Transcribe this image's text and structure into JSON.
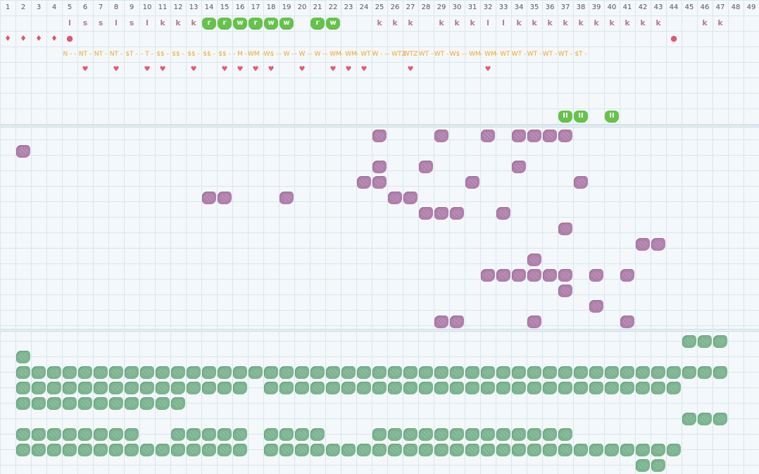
{
  "columns": [
    1,
    2,
    3,
    4,
    5,
    6,
    7,
    8,
    9,
    10,
    11,
    12,
    13,
    14,
    15,
    16,
    17,
    18,
    19,
    20,
    21,
    22,
    23,
    24,
    25,
    26,
    27,
    28,
    29,
    30,
    31,
    32,
    33,
    34,
    35,
    36,
    37,
    38,
    39,
    40,
    41,
    42,
    43,
    44,
    45,
    46,
    47,
    48,
    49
  ],
  "colors": {
    "purple": "#b07fab",
    "green": "#7bb48f",
    "badge": "#66c24a",
    "letter": "#b27d8e",
    "code": "#f0a62b",
    "heart": "#e65a73",
    "drop": "#e0576e"
  },
  "letters_row": [
    {
      "col": 5,
      "text": "l"
    },
    {
      "col": 6,
      "text": "s"
    },
    {
      "col": 7,
      "text": "s"
    },
    {
      "col": 8,
      "text": "l"
    },
    {
      "col": 9,
      "text": "s"
    },
    {
      "col": 10,
      "text": "l"
    },
    {
      "col": 11,
      "text": "k"
    },
    {
      "col": 12,
      "text": "k"
    },
    {
      "col": 13,
      "text": "k"
    },
    {
      "col": 25,
      "text": "k"
    },
    {
      "col": 26,
      "text": "k"
    },
    {
      "col": 27,
      "text": "k"
    },
    {
      "col": 29,
      "text": "k"
    },
    {
      "col": 30,
      "text": "k"
    },
    {
      "col": 31,
      "text": "k"
    },
    {
      "col": 32,
      "text": "l"
    },
    {
      "col": 33,
      "text": "l"
    },
    {
      "col": 34,
      "text": "k"
    },
    {
      "col": 35,
      "text": "k"
    },
    {
      "col": 36,
      "text": "k"
    },
    {
      "col": 37,
      "text": "k"
    },
    {
      "col": 38,
      "text": "k"
    },
    {
      "col": 39,
      "text": "k"
    },
    {
      "col": 40,
      "text": "k"
    },
    {
      "col": 41,
      "text": "k"
    },
    {
      "col": 42,
      "text": "k"
    },
    {
      "col": 43,
      "text": "k"
    },
    {
      "col": 46,
      "text": "k"
    },
    {
      "col": 47,
      "text": "k"
    }
  ],
  "badges_row": [
    {
      "col": 14,
      "text": "r"
    },
    {
      "col": 15,
      "text": "r"
    },
    {
      "col": 16,
      "text": "w"
    },
    {
      "col": 17,
      "text": "r"
    },
    {
      "col": 18,
      "text": "w"
    },
    {
      "col": 19,
      "text": "w"
    },
    {
      "col": 21,
      "text": "r"
    },
    {
      "col": 22,
      "text": "w"
    }
  ],
  "drops_row": [
    {
      "col": 1,
      "text": "♦"
    },
    {
      "col": 2,
      "text": "♦"
    },
    {
      "col": 3,
      "text": "♦"
    },
    {
      "col": 4,
      "text": "♦"
    },
    {
      "col": 5,
      "text": "●"
    },
    {
      "col": 44,
      "text": "●"
    }
  ],
  "codes_row": [
    {
      "col": 5,
      "text": "N - -"
    },
    {
      "col": 6,
      "text": "NT -"
    },
    {
      "col": 7,
      "text": "NT -"
    },
    {
      "col": 8,
      "text": "NT -"
    },
    {
      "col": 9,
      "text": "$T -"
    },
    {
      "col": 10,
      "text": "- T -"
    },
    {
      "col": 11,
      "text": "$$ -"
    },
    {
      "col": 12,
      "text": "$$ -"
    },
    {
      "col": 13,
      "text": "$$ -"
    },
    {
      "col": 14,
      "text": "$$ -"
    },
    {
      "col": 15,
      "text": "$$ -"
    },
    {
      "col": 16,
      "text": "- M -"
    },
    {
      "col": 17,
      "text": "WM -"
    },
    {
      "col": 18,
      "text": "W$ -"
    },
    {
      "col": 19,
      "text": "- W -"
    },
    {
      "col": 20,
      "text": "- W -"
    },
    {
      "col": 21,
      "text": "- W -"
    },
    {
      "col": 22,
      "text": "- WM"
    },
    {
      "col": 23,
      "text": "- WM"
    },
    {
      "col": 24,
      "text": "- WT -"
    },
    {
      "col": 25,
      "text": "W - -"
    },
    {
      "col": 26,
      "text": "- WTZ"
    },
    {
      "col": 27,
      "text": "WTZ"
    },
    {
      "col": 28,
      "text": "WT -"
    },
    {
      "col": 29,
      "text": "WT -"
    },
    {
      "col": 30,
      "text": "W$ -"
    },
    {
      "col": 31,
      "text": "- WM"
    },
    {
      "col": 32,
      "text": "- WM"
    },
    {
      "col": 33,
      "text": "- WT -"
    },
    {
      "col": 34,
      "text": "WT -"
    },
    {
      "col": 35,
      "text": "WT -"
    },
    {
      "col": 36,
      "text": "WT -"
    },
    {
      "col": 37,
      "text": "WT -"
    },
    {
      "col": 38,
      "text": "$T -"
    }
  ],
  "hearts_row": [
    {
      "col": 6,
      "text": "♥"
    },
    {
      "col": 8,
      "text": "♥"
    },
    {
      "col": 10,
      "text": "♥"
    },
    {
      "col": 11,
      "text": "♥"
    },
    {
      "col": 13,
      "text": "♥"
    },
    {
      "col": 15,
      "text": "♥"
    },
    {
      "col": 16,
      "text": "♥"
    },
    {
      "col": 17,
      "text": "♥"
    },
    {
      "col": 18,
      "text": "♥"
    },
    {
      "col": 20,
      "text": "♥"
    },
    {
      "col": 22,
      "text": "♥"
    },
    {
      "col": 23,
      "text": "♥"
    },
    {
      "col": 24,
      "text": "♥"
    },
    {
      "col": 27,
      "text": "♥"
    },
    {
      "col": 32,
      "text": "♥"
    }
  ],
  "pause_badges": [
    {
      "col": 37,
      "text": "II"
    },
    {
      "col": 38,
      "text": "II"
    },
    {
      "col": 40,
      "text": "II"
    }
  ],
  "purple_rows": [
    [
      25,
      29,
      32,
      34,
      35,
      36,
      37
    ],
    [
      2
    ],
    [
      25,
      28,
      34
    ],
    [
      24,
      25,
      31,
      38
    ],
    [
      14,
      15,
      19,
      26,
      27
    ],
    [
      28,
      29,
      30,
      33
    ],
    [
      37
    ],
    [
      42,
      43
    ],
    [
      35
    ],
    [
      32,
      33,
      34,
      35,
      36,
      37,
      39,
      41
    ],
    [
      37
    ],
    [
      39
    ],
    [
      29,
      30,
      35,
      41
    ]
  ],
  "green_rows": [
    [
      45,
      46,
      47
    ],
    [
      2
    ],
    [
      2,
      3,
      4,
      5,
      6,
      7,
      8,
      9,
      10,
      11,
      12,
      13,
      14,
      15,
      16,
      17,
      18,
      19,
      20,
      21,
      22,
      23,
      24,
      25,
      26,
      27,
      28,
      29,
      30,
      31,
      32,
      33,
      34,
      35,
      36,
      37,
      38,
      39,
      40,
      41,
      42,
      43,
      44,
      45,
      46,
      47
    ],
    [
      2,
      3,
      4,
      5,
      6,
      7,
      8,
      9,
      10,
      11,
      12,
      13,
      14,
      15,
      16,
      18,
      19,
      20,
      21,
      22,
      23,
      24,
      25,
      26,
      27,
      28,
      29,
      30,
      31,
      32,
      33,
      34,
      35,
      36,
      37,
      38,
      39,
      40,
      41,
      42,
      43,
      44
    ],
    [
      2,
      3,
      4,
      5,
      6,
      7,
      8,
      9,
      10,
      11,
      12
    ],
    [
      45,
      46,
      47
    ],
    [
      2,
      3,
      4,
      5,
      6,
      7,
      8,
      9,
      12,
      13,
      14,
      15,
      16,
      18,
      19,
      20,
      21,
      25,
      26,
      27,
      28,
      29,
      30,
      31,
      32,
      33,
      34,
      35,
      36,
      37
    ],
    [
      2,
      3,
      4,
      5,
      6,
      7,
      8,
      9,
      10,
      11,
      12,
      13,
      14,
      15,
      16,
      18,
      19,
      20,
      21,
      22,
      23,
      24,
      25,
      26,
      27,
      28,
      29,
      30,
      31,
      32,
      33,
      34,
      35,
      36,
      37,
      38,
      39,
      40,
      41,
      42,
      43,
      44
    ],
    [
      42,
      43
    ]
  ]
}
